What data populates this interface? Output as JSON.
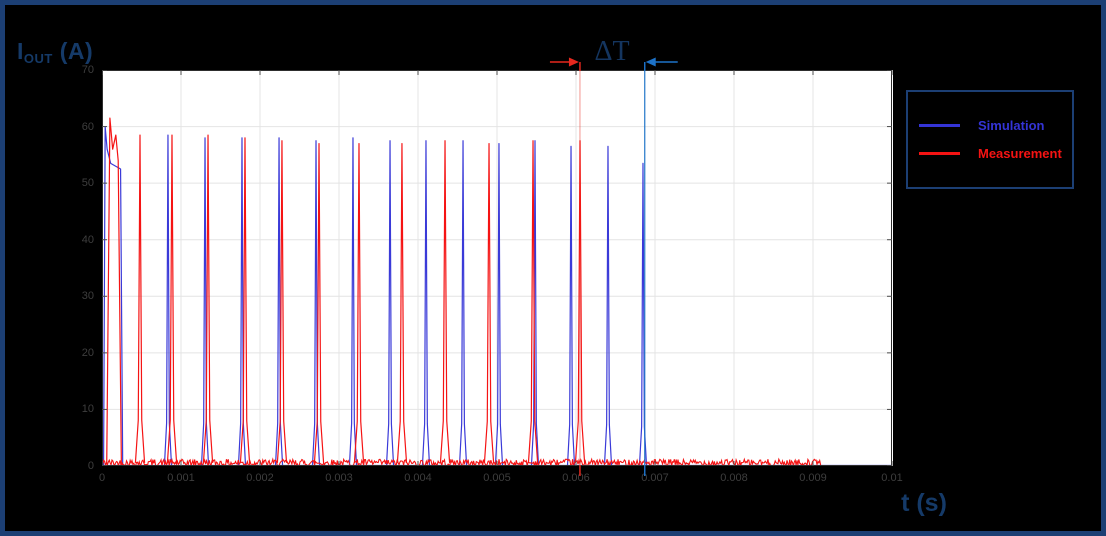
{
  "window": {
    "background": "#000000",
    "frame_color": "#1c3f74"
  },
  "titles": {
    "y_axis": {
      "base": "I",
      "sub": "OUT",
      "unit": " (A)"
    },
    "x_axis": "t (s)"
  },
  "chart_data": {
    "type": "line",
    "title": "",
    "xlabel": "t (s)",
    "ylabel": "I_OUT (A)",
    "xlim": [
      0,
      0.01
    ],
    "ylim": [
      0,
      70
    ],
    "grid": true,
    "grid_color": "#e4e4e4",
    "axis_color": "#2e2e2e",
    "tick_color": "#4d4d4d",
    "tick_label_color": "#3e3e3e",
    "xticks": {
      "values": [
        0,
        0.001,
        0.002,
        0.003,
        0.004,
        0.005,
        0.006,
        0.007,
        0.008,
        0.009,
        0.01
      ],
      "labels": [
        "0",
        "0.001",
        "0.002",
        "0.003",
        "0.004",
        "0.005",
        "0.006",
        "0.007",
        "0.008",
        "0.009",
        "0.01"
      ]
    },
    "yticks": {
      "values": [
        0,
        10,
        20,
        30,
        40,
        50,
        60,
        70
      ],
      "labels": [
        "0",
        "10",
        "20",
        "30",
        "40",
        "50",
        "60",
        "70"
      ]
    },
    "legend": {
      "position": "outside-right",
      "entries": [
        {
          "label": "Simulation",
          "color": "#3434d6"
        },
        {
          "label": "Measurement",
          "color": "#f51313"
        }
      ]
    },
    "series": [
      {
        "name": "Simulation",
        "color": "#3a3ad8",
        "baseline": 0,
        "noise_amp": 0,
        "data_end": 0.01,
        "pulse_halfwidth": 4.5e-05,
        "first_pulse": [
          [
            2e-05,
            0
          ],
          [
            4e-05,
            60
          ],
          [
            6.5e-05,
            56
          ],
          [
            0.00011,
            53.5
          ],
          [
            0.000235,
            52.5
          ],
          [
            0.000262,
            0
          ]
        ],
        "pulses": [
          {
            "t": 0.000835,
            "peak": 58.5
          },
          {
            "t": 0.001304,
            "peak": 58
          },
          {
            "t": 0.001772,
            "peak": 58
          },
          {
            "t": 0.002241,
            "peak": 58
          },
          {
            "t": 0.002709,
            "peak": 57.5
          },
          {
            "t": 0.003177,
            "peak": 58
          },
          {
            "t": 0.003646,
            "peak": 57.5
          },
          {
            "t": 0.004101,
            "peak": 57.5
          },
          {
            "t": 0.00457,
            "peak": 57.5
          },
          {
            "t": 0.005025,
            "peak": 57
          },
          {
            "t": 0.005481,
            "peak": 57.5
          },
          {
            "t": 0.005937,
            "peak": 56.5
          },
          {
            "t": 0.006405,
            "peak": 56.5
          },
          {
            "t": 0.006848,
            "peak": 53.5
          }
        ]
      },
      {
        "name": "Measurement",
        "color": "#f51313",
        "baseline": 0.55,
        "noise_amp": 1.3,
        "data_end": 0.0091,
        "pulse_halfwidth": 5.8e-05,
        "first_pulse": [
          [
            6e-05,
            0.55
          ],
          [
            0.0001,
            61.5
          ],
          [
            0.000135,
            56
          ],
          [
            0.000175,
            58.5
          ],
          [
            0.000205,
            54
          ],
          [
            0.000245,
            0.55
          ]
        ],
        "pulses": [
          {
            "t": 0.000481,
            "peak": 58.5
          },
          {
            "t": 0.000886,
            "peak": 58.5
          },
          {
            "t": 0.001342,
            "peak": 58.5
          },
          {
            "t": 0.00181,
            "peak": 58
          },
          {
            "t": 0.002278,
            "peak": 57.5
          },
          {
            "t": 0.002747,
            "peak": 57
          },
          {
            "t": 0.003253,
            "peak": 57
          },
          {
            "t": 0.003797,
            "peak": 57
          },
          {
            "t": 0.004342,
            "peak": 57.5
          },
          {
            "t": 0.004899,
            "peak": 57
          },
          {
            "t": 0.005456,
            "peak": 57.5
          },
          {
            "t": 0.006051,
            "peak": 57.5
          }
        ]
      }
    ],
    "annotations": {
      "label": "ΔT",
      "label_color": "#14355f",
      "markers": [
        {
          "t": 0.00605,
          "color": "#e8281e",
          "arrow": "right",
          "in_plot_opacity": 0.38
        },
        {
          "t": 0.00687,
          "color": "#1d72c8",
          "arrow": "left",
          "in_plot_opacity": 0.9
        }
      ]
    }
  }
}
